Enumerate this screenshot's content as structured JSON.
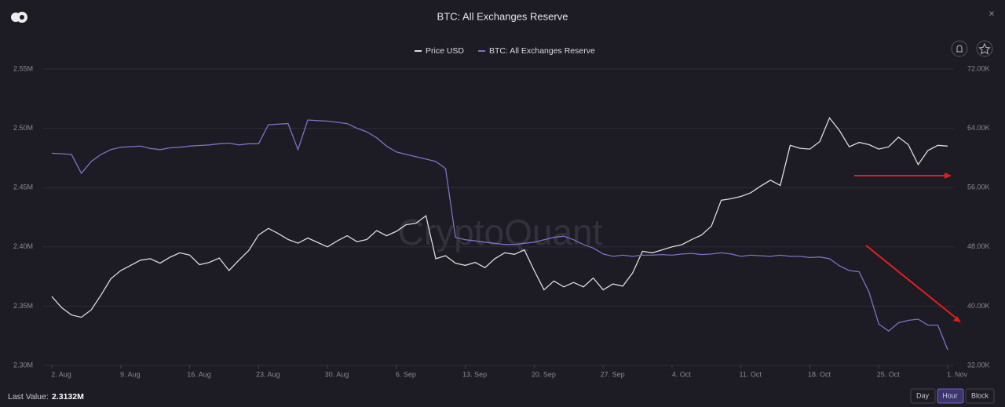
{
  "chart_data": {
    "type": "line",
    "title": "BTC: All Exchanges Reserve",
    "watermark": "CryptoQuant",
    "categories": [
      "2. Aug",
      null,
      null,
      null,
      null,
      null,
      null,
      "9. Aug",
      null,
      null,
      null,
      null,
      null,
      null,
      "16. Aug",
      null,
      null,
      null,
      null,
      null,
      null,
      "23. Aug",
      null,
      null,
      null,
      null,
      null,
      null,
      "30. Aug",
      null,
      null,
      null,
      null,
      null,
      null,
      "6. Sep",
      null,
      null,
      null,
      null,
      null,
      null,
      "13. Sep",
      null,
      null,
      null,
      null,
      null,
      null,
      "20. Sep",
      null,
      null,
      null,
      null,
      null,
      null,
      "27. Sep",
      null,
      null,
      null,
      null,
      null,
      null,
      "4. Oct",
      null,
      null,
      null,
      null,
      null,
      null,
      "11. Oct",
      null,
      null,
      null,
      null,
      null,
      null,
      "18. Oct",
      null,
      null,
      null,
      null,
      null,
      null,
      "25. Oct",
      null,
      null,
      null,
      null,
      null,
      null,
      "1. Nov"
    ],
    "series": [
      {
        "name": "Price USD",
        "color": "#dcdcdc",
        "axis": "y2",
        "values": [
          41300,
          39800,
          38800,
          38500,
          39500,
          41500,
          43700,
          44800,
          45500,
          46200,
          46400,
          45800,
          46600,
          47200,
          46900,
          45600,
          45900,
          46500,
          44800,
          46200,
          47500,
          49600,
          50500,
          49800,
          49000,
          48500,
          49200,
          48600,
          48000,
          48800,
          49500,
          48700,
          49000,
          50200,
          49500,
          50100,
          51000,
          51200,
          52200,
          46400,
          46800,
          45800,
          45500,
          45900,
          45200,
          46400,
          47200,
          47000,
          47600,
          44800,
          42200,
          43400,
          42600,
          43200,
          42600,
          43800,
          42200,
          43000,
          42700,
          44500,
          47400,
          47200,
          47600,
          48000,
          48300,
          49000,
          49600,
          50800,
          54300,
          54500,
          54800,
          55300,
          56200,
          57000,
          56300,
          61700,
          61300,
          61200,
          62200,
          65400,
          63700,
          61500,
          62100,
          61800,
          61200,
          61500,
          62800,
          61800,
          59100,
          61000,
          61700,
          61600
        ]
      },
      {
        "name": "BTC: All Exchanges Reserve",
        "color": "#7b72c8",
        "values": [
          2479000,
          2478500,
          2478000,
          2462000,
          2472000,
          2478000,
          2482000,
          2484000,
          2484500,
          2485000,
          2483000,
          2482000,
          2483500,
          2484000,
          2485000,
          2485500,
          2486000,
          2487000,
          2487500,
          2486000,
          2487000,
          2487000,
          2503000,
          2503500,
          2504000,
          2482000,
          2507000,
          2506500,
          2506000,
          2505000,
          2504000,
          2500000,
          2497000,
          2492000,
          2485000,
          2480000,
          2478000,
          2476000,
          2474000,
          2472000,
          2466000,
          2408000,
          2406000,
          2405000,
          2404000,
          2403000,
          2402000,
          2402000,
          2403000,
          2404000,
          2406000,
          2408000,
          2409000,
          2406000,
          2402000,
          2399000,
          2394000,
          2392000,
          2393000,
          2392000,
          2393000,
          2393000,
          2393500,
          2393000,
          2394000,
          2394500,
          2393500,
          2394000,
          2395000,
          2394000,
          2392000,
          2393000,
          2392500,
          2392000,
          2393000,
          2392000,
          2392000,
          2391000,
          2391500,
          2390000,
          2384000,
          2380000,
          2379000,
          2362000,
          2335000,
          2329000,
          2336000,
          2338000,
          2339000,
          2334000,
          2334000,
          2313200
        ]
      }
    ],
    "ylim": [
      2300000,
      2550000
    ],
    "yticks": [
      {
        "value": 2300000,
        "label": "2.30M"
      },
      {
        "value": 2350000,
        "label": "2.35M"
      },
      {
        "value": 2400000,
        "label": "2.40M"
      },
      {
        "value": 2450000,
        "label": "2.45M"
      },
      {
        "value": 2500000,
        "label": "2.50M"
      },
      {
        "value": 2550000,
        "label": "2.55M"
      }
    ],
    "y2lim": [
      32000,
      72000
    ],
    "y2ticks": [
      {
        "value": 32000,
        "label": "32.00K"
      },
      {
        "value": 40000,
        "label": "40.00K"
      },
      {
        "value": 48000,
        "label": "48.00K"
      },
      {
        "value": 56000,
        "label": "56.00K"
      },
      {
        "value": 64000,
        "label": "64.00K"
      },
      {
        "value": 72000,
        "label": "72.00K"
      }
    ],
    "grid": true
  },
  "footer": {
    "last_value_label": "Last Value:",
    "last_value": "2.3132M",
    "buttons": [
      "Day",
      "Hour",
      "Block"
    ]
  }
}
